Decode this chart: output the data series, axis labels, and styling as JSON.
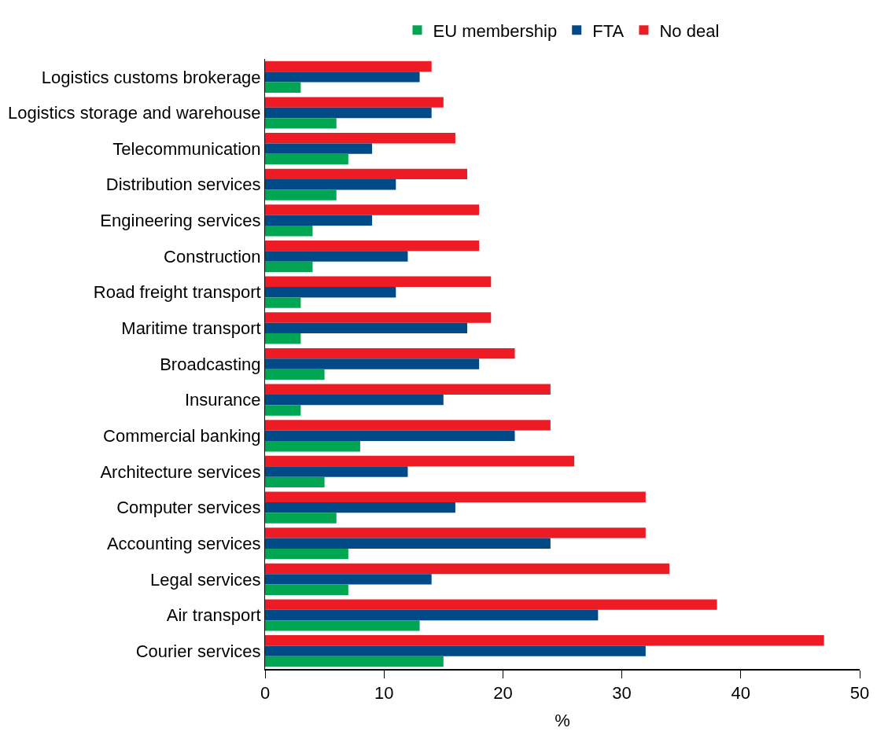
{
  "chart_data": {
    "type": "bar",
    "orientation": "horizontal",
    "xlabel": "%",
    "categories": [
      "Logistics customs brokerage",
      "Logistics storage and warehouse",
      "Telecommunication",
      "Distribution services",
      "Engineering services",
      "Construction",
      "Road freight transport",
      "Maritime transport",
      "Broadcasting",
      "Insurance",
      "Commercial banking",
      "Architecture services",
      "Computer services",
      "Accounting services",
      "Legal services",
      "Air transport",
      "Courier services"
    ],
    "series": [
      {
        "name": "EU membership",
        "color": "#00a651",
        "values": [
          3,
          6,
          7,
          6,
          4,
          4,
          3,
          3,
          5,
          3,
          8,
          5,
          6,
          7,
          7,
          13,
          15
        ]
      },
      {
        "name": "FTA",
        "color": "#004a87",
        "values": [
          13,
          14,
          9,
          11,
          9,
          12,
          11,
          17,
          18,
          15,
          21,
          12,
          16,
          24,
          14,
          28,
          32
        ]
      },
      {
        "name": "No deal",
        "color": "#ed1c24",
        "values": [
          14,
          15,
          16,
          17,
          18,
          18,
          19,
          19,
          21,
          24,
          24,
          26,
          32,
          32,
          34,
          38,
          47
        ]
      }
    ],
    "xlim": [
      0,
      50
    ],
    "xticks": [
      0,
      10,
      20,
      30,
      40,
      50
    ],
    "legend": "top"
  }
}
